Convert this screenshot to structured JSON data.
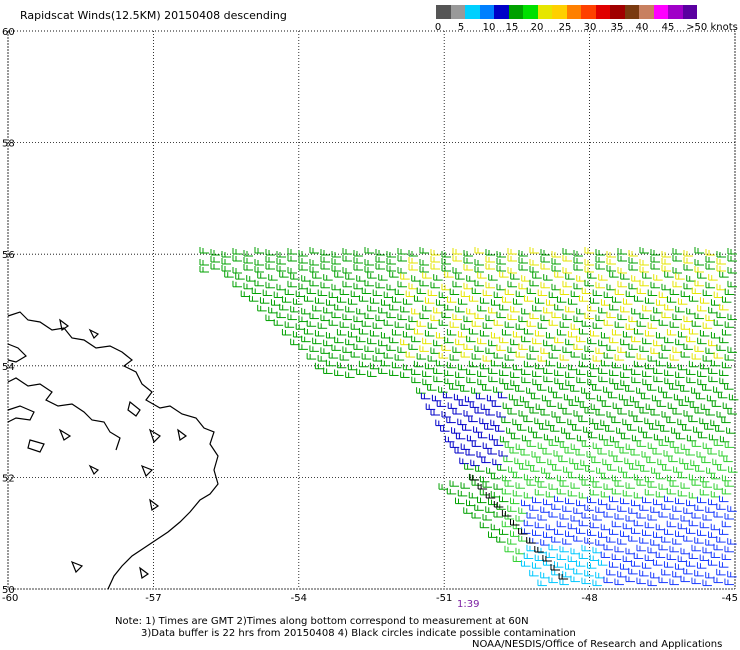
{
  "title": "Rapidscat Winds(12.5KM) 20150408 descending",
  "legend": {
    "colors": [
      "#555555",
      "#999999",
      "#00d0ff",
      "#0080ff",
      "#0000c8",
      "#00a000",
      "#00e000",
      "#e6e600",
      "#ffd000",
      "#ff8000",
      "#ff4000",
      "#e00000",
      "#a00000",
      "#7a3a10",
      "#c88060",
      "#ff00ff",
      "#a000c8",
      "#5a00a0"
    ],
    "labels": [
      "0",
      "5",
      "10",
      "15",
      "20",
      "25",
      "30",
      "35",
      "40",
      "45",
      ">50 knots"
    ],
    "units": "knots"
  },
  "map": {
    "lat_labels": [
      "60",
      "58",
      "56",
      "54",
      "52",
      "50"
    ],
    "lon_labels": [
      "-60",
      "-57",
      "-54",
      "-51",
      "-48",
      "-45"
    ],
    "lat_range": [
      50,
      60
    ],
    "lon_range": [
      -60,
      -45
    ],
    "gridlines": true,
    "coastline_color": "#000000",
    "pass_time": "1:39"
  },
  "notes": {
    "line1": "Note: 1) Times are GMT 2)Times along bottom correspond to measurement at 60N",
    "line2": "3)Data buffer is 22 hrs from 20150408 4) Black circles indicate possible contamination",
    "credit": "NOAA/NESDIS/Office of Research and Applications"
  }
}
